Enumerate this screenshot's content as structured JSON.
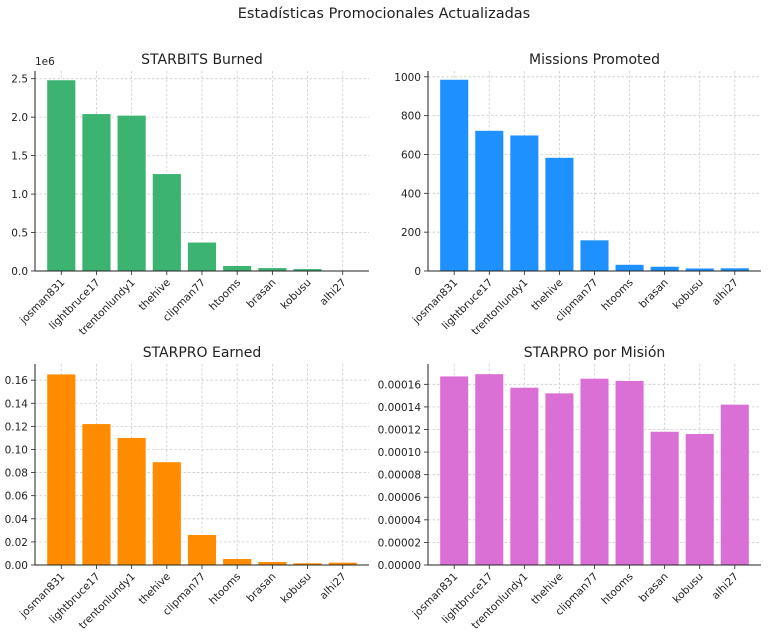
{
  "figure": {
    "title": "Estadísticas Promocionales Actualizadas"
  },
  "chart_data": [
    {
      "type": "bar",
      "title": "STARBITS Burned",
      "color": "#3cb371",
      "categories": [
        "josman831",
        "lightbruce17",
        "trentonlundy1",
        "thehive",
        "clipman77",
        "htooms",
        "brasan",
        "kobusu",
        "alhi27"
      ],
      "values": [
        2480000,
        2040000,
        2020000,
        1260000,
        370000,
        65000,
        38000,
        25000,
        3000
      ],
      "ylim": [
        0,
        2600000
      ],
      "ytick_values": [
        0,
        500000,
        1000000,
        1500000,
        2000000,
        2500000
      ],
      "yticks": [
        "0.0",
        "0.5",
        "1.0",
        "1.5",
        "2.0",
        "2.5"
      ],
      "offset_label": "1e6",
      "grid": true
    },
    {
      "type": "bar",
      "title": "Missions Promoted",
      "color": "#1e90ff",
      "categories": [
        "josman831",
        "lightbruce17",
        "trentonlundy1",
        "thehive",
        "clipman77",
        "htooms",
        "brasan",
        "kobusu",
        "alhi27"
      ],
      "values": [
        985,
        722,
        698,
        583,
        158,
        32,
        22,
        13,
        14
      ],
      "ylim": [
        0,
        1030
      ],
      "ytick_values": [
        0,
        200,
        400,
        600,
        800,
        1000
      ],
      "yticks": [
        "0",
        "200",
        "400",
        "600",
        "800",
        "1000"
      ],
      "grid": true
    },
    {
      "type": "bar",
      "title": "STARPRO Earned",
      "color": "#ff8c00",
      "categories": [
        "josman831",
        "lightbruce17",
        "trentonlundy1",
        "thehive",
        "clipman77",
        "htooms",
        "brasan",
        "kobusu",
        "alhi27"
      ],
      "values": [
        0.165,
        0.122,
        0.11,
        0.089,
        0.026,
        0.0052,
        0.0026,
        0.0015,
        0.002
      ],
      "ylim": [
        0,
        0.174
      ],
      "ytick_values": [
        0,
        0.02,
        0.04,
        0.06,
        0.08,
        0.1,
        0.12,
        0.14,
        0.16
      ],
      "yticks": [
        "0.00",
        "0.02",
        "0.04",
        "0.06",
        "0.08",
        "0.10",
        "0.12",
        "0.14",
        "0.16"
      ],
      "grid": true
    },
    {
      "type": "bar",
      "title": "STARPRO por Misión",
      "color": "#da70d6",
      "categories": [
        "josman831",
        "lightbruce17",
        "trentonlundy1",
        "thehive",
        "clipman77",
        "htooms",
        "brasan",
        "kobusu",
        "alhi27"
      ],
      "values": [
        0.000167,
        0.000169,
        0.000157,
        0.000152,
        0.000165,
        0.000163,
        0.000118,
        0.000116,
        0.000142
      ],
      "ylim": [
        0,
        0.000178
      ],
      "ytick_values": [
        0,
        2e-05,
        4e-05,
        6e-05,
        8e-05,
        0.0001,
        0.00012,
        0.00014,
        0.00016
      ],
      "yticks": [
        "0.00000",
        "0.00002",
        "0.00004",
        "0.00006",
        "0.00008",
        "0.00010",
        "0.00012",
        "0.00014",
        "0.00016"
      ],
      "grid": true
    }
  ]
}
